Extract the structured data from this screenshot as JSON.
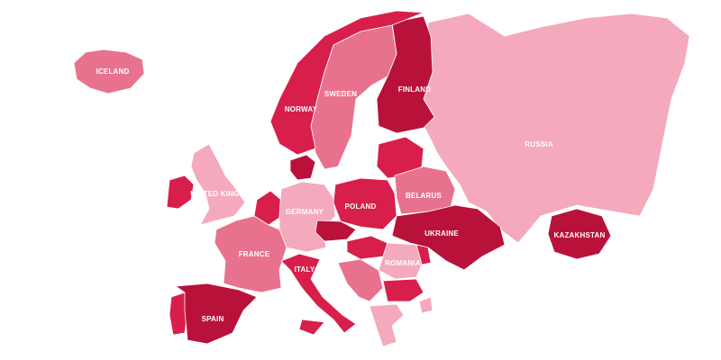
{
  "colors": {
    "darkest": "#b8123a",
    "dark": "#d81e4a",
    "medium": "#e8728d",
    "light": "#f4a9bc",
    "background": "#ffffff"
  },
  "countries": [
    {
      "id": "iceland",
      "label": "ICELAND",
      "shade": "medium"
    },
    {
      "id": "russia",
      "label": "RUSSIA",
      "shade": "light"
    },
    {
      "id": "finland",
      "label": "FINLAND",
      "shade": "darkest"
    },
    {
      "id": "sweden",
      "label": "SWEDEN",
      "shade": "medium"
    },
    {
      "id": "norway",
      "label": "NORWAY",
      "shade": "dark"
    },
    {
      "id": "united-kingdom",
      "label": "UNITED KINGDOM",
      "shade": "light"
    },
    {
      "id": "ireland",
      "label": "",
      "shade": "dark"
    },
    {
      "id": "germany",
      "label": "GERMANY",
      "shade": "light"
    },
    {
      "id": "poland",
      "label": "POLAND",
      "shade": "dark"
    },
    {
      "id": "belarus",
      "label": "BELARUS",
      "shade": "medium"
    },
    {
      "id": "ukraine",
      "label": "UKRAINE",
      "shade": "darkest"
    },
    {
      "id": "kazakhstan",
      "label": "KAZAKHSTAN",
      "shade": "darkest"
    },
    {
      "id": "france",
      "label": "FRANCE",
      "shade": "medium"
    },
    {
      "id": "italy",
      "label": "ITALY",
      "shade": "dark"
    },
    {
      "id": "romania",
      "label": "ROMANIA",
      "shade": "light"
    },
    {
      "id": "spain",
      "label": "SPAIN",
      "shade": "darkest"
    },
    {
      "id": "portugal",
      "label": "",
      "shade": "dark"
    },
    {
      "id": "benelux",
      "label": "",
      "shade": "dark"
    },
    {
      "id": "denmark",
      "label": "",
      "shade": "darkest"
    },
    {
      "id": "baltics",
      "label": "",
      "shade": "dark"
    },
    {
      "id": "czechia",
      "label": "",
      "shade": "darkest"
    },
    {
      "id": "hungary",
      "label": "",
      "shade": "dark"
    },
    {
      "id": "balkans",
      "label": "",
      "shade": "medium"
    },
    {
      "id": "bulgaria",
      "label": "",
      "shade": "dark"
    },
    {
      "id": "greece",
      "label": "",
      "shade": "light"
    },
    {
      "id": "turkey-edge",
      "label": "",
      "shade": "light"
    },
    {
      "id": "moldova",
      "label": "",
      "shade": "dark"
    }
  ]
}
